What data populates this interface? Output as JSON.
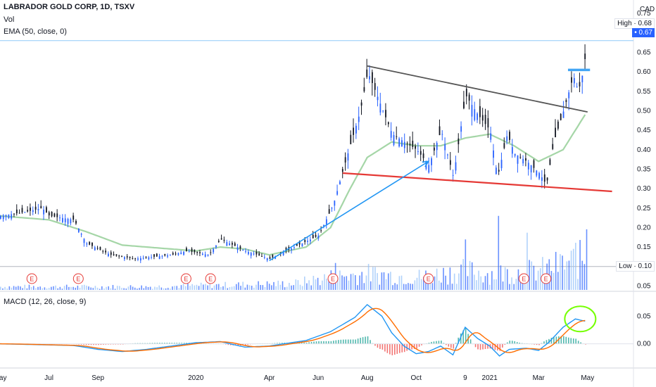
{
  "header": {
    "title": "LABRADOR GOLD CORP, 1D, TSXV",
    "vol_label": "Vol",
    "ema_label": "EMA (50, close, 0)",
    "macd_label": "MACD (12, 26, close, 9)",
    "currency": "CAD"
  },
  "price_labels": {
    "high_label": "High",
    "high_value": "0.68",
    "last_value": "0.67",
    "low_label": "Low",
    "low_value": "0.10"
  },
  "colors": {
    "up": "#2962ff",
    "down": "#131722",
    "ema": "#a5d6a7",
    "volume_up": "#90bff9",
    "volume_down": "#2962ff",
    "macd_line": "#2196f3",
    "signal_line": "#ff6d00",
    "hist_pos": "#26a69a",
    "hist_neg": "#ef5350",
    "resistance_trendline": "#555555",
    "support_trendline": "#e53935",
    "arrow": "#2196f3",
    "breakout_level": "#42a5f5",
    "highlight_circle": "#76ff03",
    "earnings_marker": "#e53935"
  },
  "chart_data": {
    "type": "candlestick",
    "timeframe": "1D",
    "x_axis": {
      "ticks": [
        "May",
        "Jul",
        "Sep",
        "2020",
        "Apr",
        "Jun",
        "Aug",
        "Oct",
        "9",
        "2021",
        "Mar",
        "May"
      ],
      "tick_times": [
        0,
        2,
        4,
        8,
        11,
        13,
        15,
        17,
        19,
        20,
        22,
        24
      ]
    },
    "y_axis": {
      "range": [
        0.04,
        0.77
      ],
      "ticks": [
        0.05,
        0.1,
        0.15,
        0.2,
        0.25,
        0.3,
        0.35,
        0.4,
        0.45,
        0.5,
        0.55,
        0.6,
        0.65,
        0.75
      ],
      "tick_labels": [
        "0.05",
        "0.10",
        "0.15",
        "0.20",
        "0.25",
        "0.30",
        "0.35",
        "0.40",
        "0.45",
        "0.50",
        "0.55",
        "0.60",
        "0.65",
        "0.75"
      ]
    },
    "macd_axis": {
      "range": [
        -0.04,
        0.09
      ],
      "ticks": [
        0.0,
        0.05
      ],
      "tick_labels": [
        "0.00",
        "0.05"
      ]
    },
    "price_keyframes": [
      [
        0,
        0.23
      ],
      [
        1,
        0.24
      ],
      [
        1.7,
        0.25
      ],
      [
        2,
        0.23
      ],
      [
        3,
        0.22
      ],
      [
        3.5,
        0.16
      ],
      [
        4.5,
        0.13
      ],
      [
        5.5,
        0.12
      ],
      [
        7,
        0.13
      ],
      [
        7.6,
        0.14
      ],
      [
        8.5,
        0.13
      ],
      [
        9,
        0.17
      ],
      [
        10,
        0.14
      ],
      [
        11,
        0.12
      ],
      [
        12,
        0.15
      ],
      [
        13,
        0.18
      ],
      [
        13.6,
        0.26
      ],
      [
        14,
        0.35
      ],
      [
        14.7,
        0.5
      ],
      [
        15,
        0.6
      ],
      [
        15.5,
        0.52
      ],
      [
        16,
        0.44
      ],
      [
        17,
        0.4
      ],
      [
        17.5,
        0.36
      ],
      [
        18,
        0.45
      ],
      [
        18.5,
        0.33
      ],
      [
        19,
        0.54
      ],
      [
        19.5,
        0.49
      ],
      [
        20,
        0.45
      ],
      [
        20.3,
        0.33
      ],
      [
        20.7,
        0.44
      ],
      [
        21,
        0.39
      ],
      [
        21.5,
        0.37
      ],
      [
        22,
        0.34
      ],
      [
        22.3,
        0.31
      ],
      [
        22.6,
        0.42
      ],
      [
        23,
        0.5
      ],
      [
        23.4,
        0.59
      ],
      [
        23.6,
        0.55
      ],
      [
        23.8,
        0.6
      ],
      [
        23.95,
        0.67
      ]
    ],
    "ema50_keyframes": [
      [
        0,
        0.23
      ],
      [
        2,
        0.22
      ],
      [
        3.5,
        0.19
      ],
      [
        5,
        0.155
      ],
      [
        6,
        0.15
      ],
      [
        8,
        0.14
      ],
      [
        9,
        0.15
      ],
      [
        10,
        0.145
      ],
      [
        11,
        0.13
      ],
      [
        12.5,
        0.15
      ],
      [
        13.5,
        0.2
      ],
      [
        14.3,
        0.3
      ],
      [
        15,
        0.38
      ],
      [
        16,
        0.42
      ],
      [
        17,
        0.41
      ],
      [
        18,
        0.41
      ],
      [
        19,
        0.43
      ],
      [
        20,
        0.44
      ],
      [
        21,
        0.41
      ],
      [
        22,
        0.37
      ],
      [
        23,
        0.4
      ],
      [
        23.5,
        0.45
      ],
      [
        24,
        0.5
      ]
    ],
    "volume_keyframes": [
      [
        0,
        0.01
      ],
      [
        6,
        0.01
      ],
      [
        12,
        0.02
      ],
      [
        13.5,
        0.04
      ],
      [
        15,
        0.05
      ],
      [
        17,
        0.04
      ],
      [
        19,
        0.06
      ],
      [
        20,
        0.05
      ],
      [
        22,
        0.06
      ],
      [
        23,
        0.08
      ],
      [
        24,
        0.1
      ]
    ],
    "volume_spikes": [
      [
        20.3,
        0.22
      ],
      [
        19,
        0.15
      ],
      [
        21.5,
        0.17
      ],
      [
        23.9,
        0.18
      ],
      [
        23.5,
        0.14
      ],
      [
        13.7,
        0.08
      ]
    ],
    "macd_keyframes": [
      [
        0,
        0.0
      ],
      [
        3,
        -0.003
      ],
      [
        4,
        -0.01
      ],
      [
        5,
        -0.014
      ],
      [
        6,
        -0.01
      ],
      [
        8,
        0.002
      ],
      [
        9,
        0.004
      ],
      [
        10,
        -0.006
      ],
      [
        11,
        -0.004
      ],
      [
        12.5,
        0.006
      ],
      [
        13.5,
        0.022
      ],
      [
        14.5,
        0.048
      ],
      [
        15,
        0.071
      ],
      [
        15.6,
        0.05
      ],
      [
        16,
        0.02
      ],
      [
        16.5,
        -0.004
      ],
      [
        17,
        -0.018
      ],
      [
        17.5,
        -0.014
      ],
      [
        18,
        -0.004
      ],
      [
        18.5,
        -0.02
      ],
      [
        19,
        0.03
      ],
      [
        19.5,
        0.01
      ],
      [
        20,
        -0.004
      ],
      [
        20.4,
        -0.022
      ],
      [
        20.8,
        -0.01
      ],
      [
        21.5,
        -0.008
      ],
      [
        22,
        -0.012
      ],
      [
        22.4,
        0.002
      ],
      [
        23,
        0.03
      ],
      [
        23.5,
        0.045
      ],
      [
        24,
        0.04
      ]
    ],
    "earnings_markers": [
      1.3,
      3.2,
      7.6,
      8.6,
      13.6,
      17.5,
      21.4,
      22.3
    ],
    "annotations": {
      "resistance_trendline": [
        [
          15,
          0.615
        ],
        [
          24,
          0.497
        ]
      ],
      "support_trendline": [
        [
          14,
          0.34
        ],
        [
          25,
          0.293
        ]
      ],
      "arrow": [
        [
          11,
          0.115
        ],
        [
          17.5,
          0.37
        ]
      ],
      "breakout_level": [
        [
          23.2,
          0.605
        ],
        [
          24.1,
          0.605
        ]
      ],
      "highlight_circle": [
        23.7,
        0.045
      ],
      "high_line_price": 0.68,
      "low_line_price": 0.1
    }
  }
}
